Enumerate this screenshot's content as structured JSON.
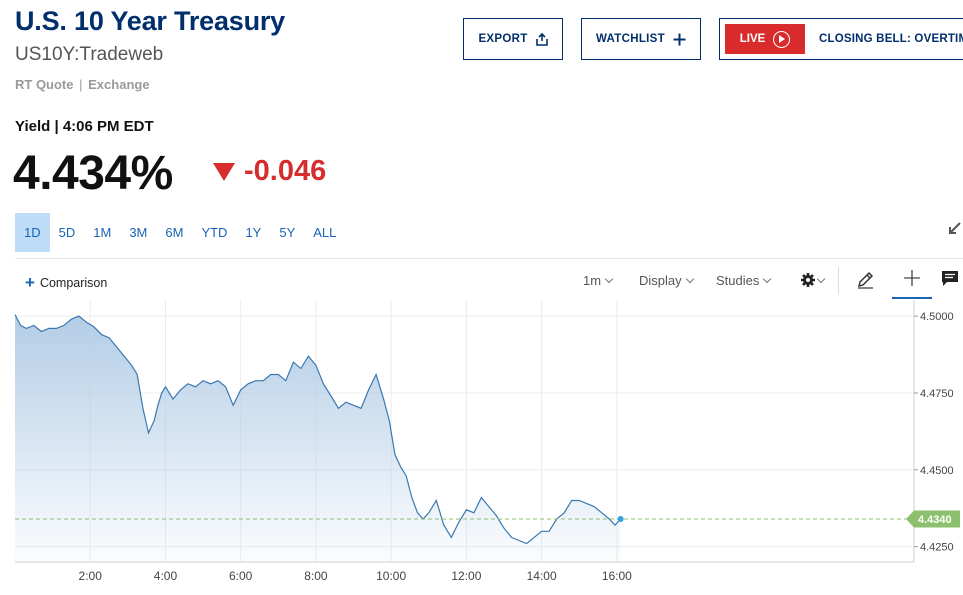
{
  "header": {
    "title": "U.S. 10 Year Treasury",
    "symbol": "US10Y:Tradeweb",
    "quote_type": "RT Quote",
    "quote_sep": "|",
    "exchange": "Exchange"
  },
  "actions": {
    "export_label": "EXPORT",
    "watchlist_label": "WATCHLIST",
    "live_label": "LIVE",
    "live_show": "CLOSING BELL: OVERTIME"
  },
  "quote": {
    "yield_label": "Yield | 4:06 PM EDT",
    "last": "4.434%",
    "change": "-0.046",
    "direction": "down",
    "down_color": "#d62d2d"
  },
  "ranges": [
    "1D",
    "5D",
    "1M",
    "3M",
    "6M",
    "YTD",
    "1Y",
    "5Y",
    "ALL"
  ],
  "active_range": "1D",
  "toolbar": {
    "comparison_label": "Comparison",
    "interval_label": "1m",
    "display_label": "Display",
    "studies_label": "Studies",
    "icons": [
      "settings-icon",
      "pencil-icon",
      "crosshair-icon",
      "comment-icon",
      "expand-icon"
    ]
  },
  "chart_data": {
    "type": "area",
    "x_ticks": [
      "2:00",
      "4:00",
      "6:00",
      "8:00",
      "10:00",
      "12:00",
      "14:00",
      "16:00"
    ],
    "y_ticks": [
      "4.5000",
      "4.4750",
      "4.4500",
      "4.4250"
    ],
    "ylim": [
      4.42,
      4.502
    ],
    "xlim": [
      0.0,
      23.9
    ],
    "last_value_label": "4.4340",
    "last_value": 4.434,
    "line_color": "#3a78b0",
    "fill_top_color": "#b3cde6",
    "last_label_color": "#8cc06e",
    "grid": true,
    "series": [
      {
        "x": [
          0.0,
          0.15,
          0.3,
          0.5,
          0.7,
          0.9,
          1.1,
          1.3,
          1.5,
          1.7,
          1.9,
          2.1,
          2.3,
          2.5,
          2.7,
          2.9,
          3.1,
          3.25,
          3.4,
          3.55,
          3.7,
          3.8,
          3.9,
          4.0,
          4.2,
          4.4,
          4.6,
          4.8,
          5.0,
          5.2,
          5.4,
          5.6,
          5.8,
          6.0,
          6.2,
          6.4,
          6.6,
          6.8,
          7.0,
          7.2,
          7.4,
          7.6,
          7.8,
          8.0,
          8.2,
          8.4,
          8.6,
          8.8,
          9.0,
          9.2,
          9.4,
          9.6,
          9.8,
          9.95,
          10.1,
          10.25,
          10.4,
          10.55,
          10.7,
          10.85,
          11.0,
          11.2,
          11.4,
          11.6,
          11.8,
          12.0,
          12.2,
          12.4,
          12.6,
          12.8,
          13.0,
          13.2,
          13.4,
          13.6,
          13.8,
          14.0,
          14.2,
          14.4,
          14.6,
          14.8,
          15.0,
          15.2,
          15.4,
          15.6,
          15.8,
          15.95,
          16.1
        ],
        "values": [
          4.5005,
          4.497,
          4.496,
          4.497,
          4.495,
          4.496,
          4.496,
          4.497,
          4.499,
          4.5,
          4.498,
          4.4965,
          4.494,
          4.493,
          4.49,
          4.487,
          4.484,
          4.481,
          4.47,
          4.462,
          4.466,
          4.471,
          4.475,
          4.477,
          4.473,
          4.476,
          4.478,
          4.477,
          4.479,
          4.478,
          4.479,
          4.477,
          4.471,
          4.476,
          4.478,
          4.479,
          4.479,
          4.481,
          4.481,
          4.479,
          4.485,
          4.483,
          4.487,
          4.484,
          4.478,
          4.474,
          4.47,
          4.472,
          4.471,
          4.47,
          4.476,
          4.481,
          4.473,
          4.466,
          4.455,
          4.451,
          4.448,
          4.441,
          4.436,
          4.434,
          4.436,
          4.44,
          4.432,
          4.428,
          4.433,
          4.437,
          4.436,
          4.441,
          4.438,
          4.435,
          4.431,
          4.428,
          4.427,
          4.426,
          4.428,
          4.43,
          4.43,
          4.434,
          4.436,
          4.44,
          4.44,
          4.439,
          4.438,
          4.436,
          4.434,
          4.432,
          4.434
        ]
      }
    ]
  }
}
